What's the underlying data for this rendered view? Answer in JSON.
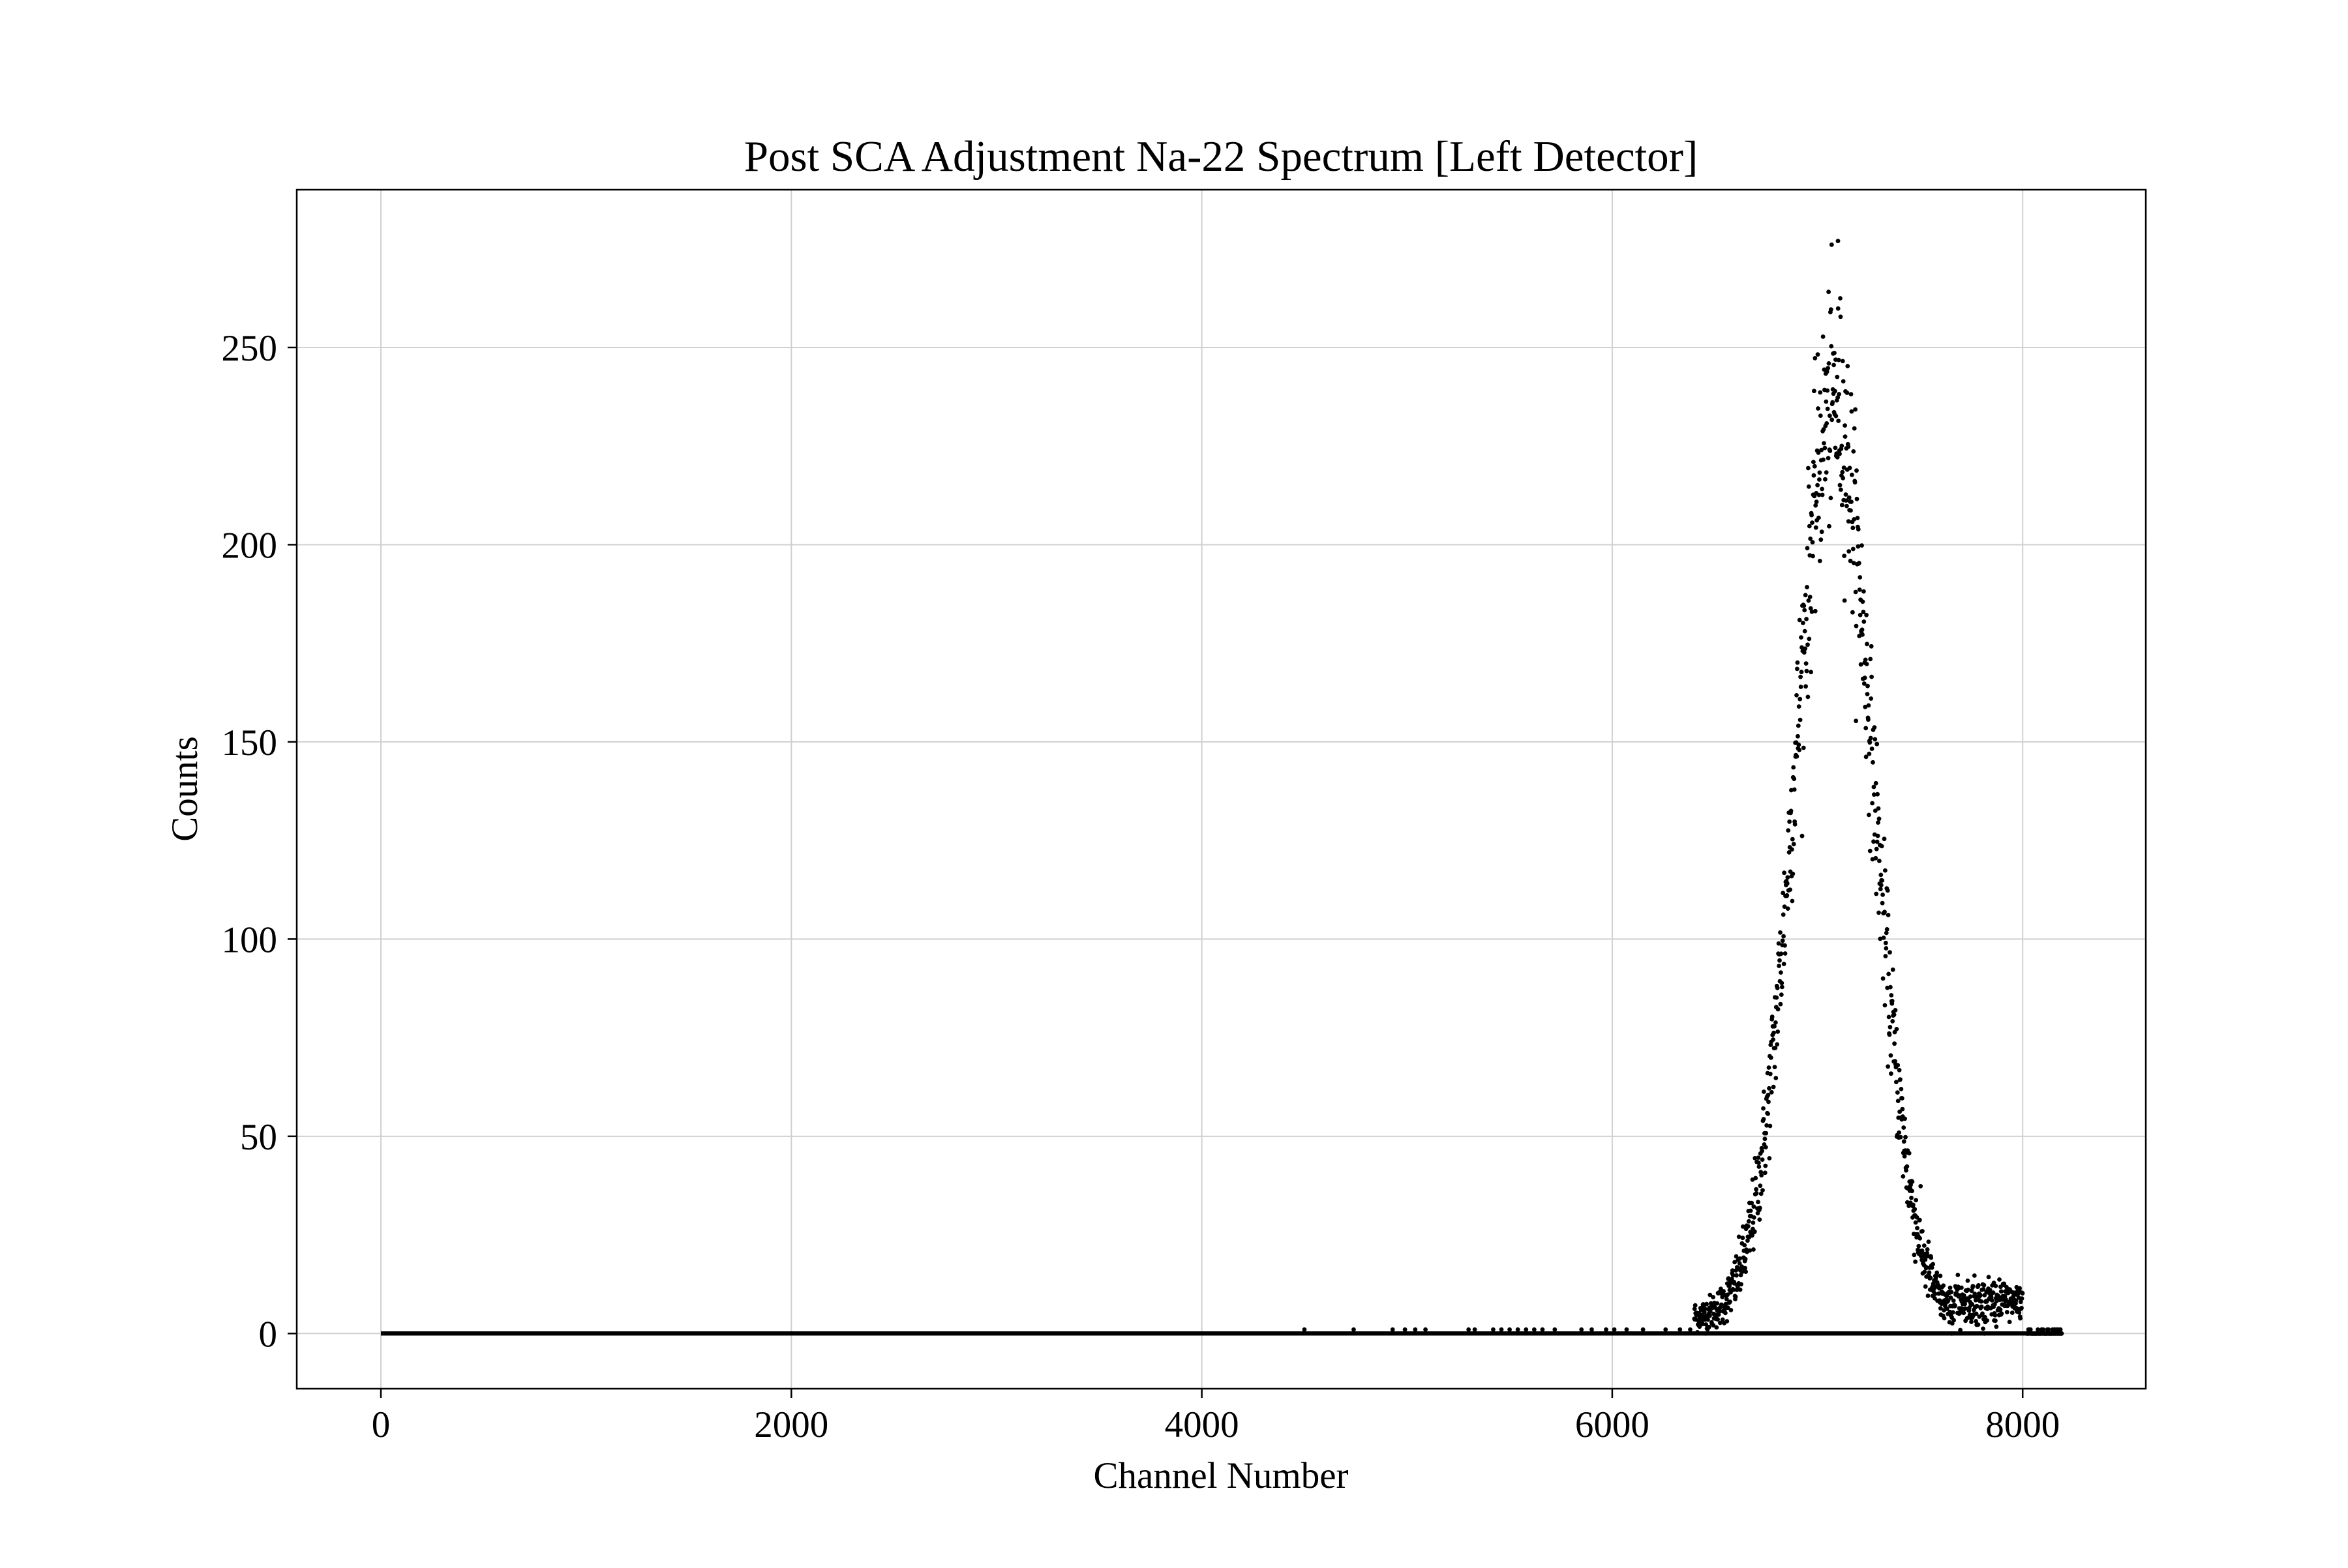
{
  "chart_data": {
    "type": "scatter",
    "title": "Post SCA Adjustment Na-22 Spectrum [Left Detector]",
    "xlabel": "Channel Number",
    "ylabel": "Counts",
    "xlim": [
      -410,
      8600
    ],
    "ylim": [
      -14,
      290
    ],
    "xticks": [
      0,
      2000,
      4000,
      6000,
      8000
    ],
    "xtick_labels": [
      "0",
      "2000",
      "4000",
      "6000",
      "8000"
    ],
    "yticks": [
      0,
      50,
      100,
      150,
      200,
      250
    ],
    "ytick_labels": [
      "0",
      "50",
      "100",
      "150",
      "200",
      "250"
    ],
    "grid": true,
    "legend": "none",
    "marker_color": "#000000",
    "series": [
      {
        "values": {
          "baseline_range": [
            0,
            8191
          ],
          "baseline_value": 0,
          "sporadic_single_counts": [
            4500,
            4740,
            4930,
            4990,
            5040,
            5090,
            5300,
            5330,
            5420,
            5460,
            5500,
            5540,
            5580,
            5620,
            5660,
            5720,
            5850,
            5900,
            5970,
            6010,
            6070,
            6150,
            6260,
            6330,
            6380
          ],
          "photopeak": {
            "center": 7080,
            "peak_counts": 232,
            "sigma": 188,
            "background": 4,
            "start": 6400,
            "end": 8000,
            "max_observed": [
              7100,
              277
            ]
          },
          "tail_noise": {
            "start": 7660,
            "end": 8010,
            "level": 8
          },
          "zero_tail": [
            8020,
            8190
          ]
        }
      }
    ]
  }
}
